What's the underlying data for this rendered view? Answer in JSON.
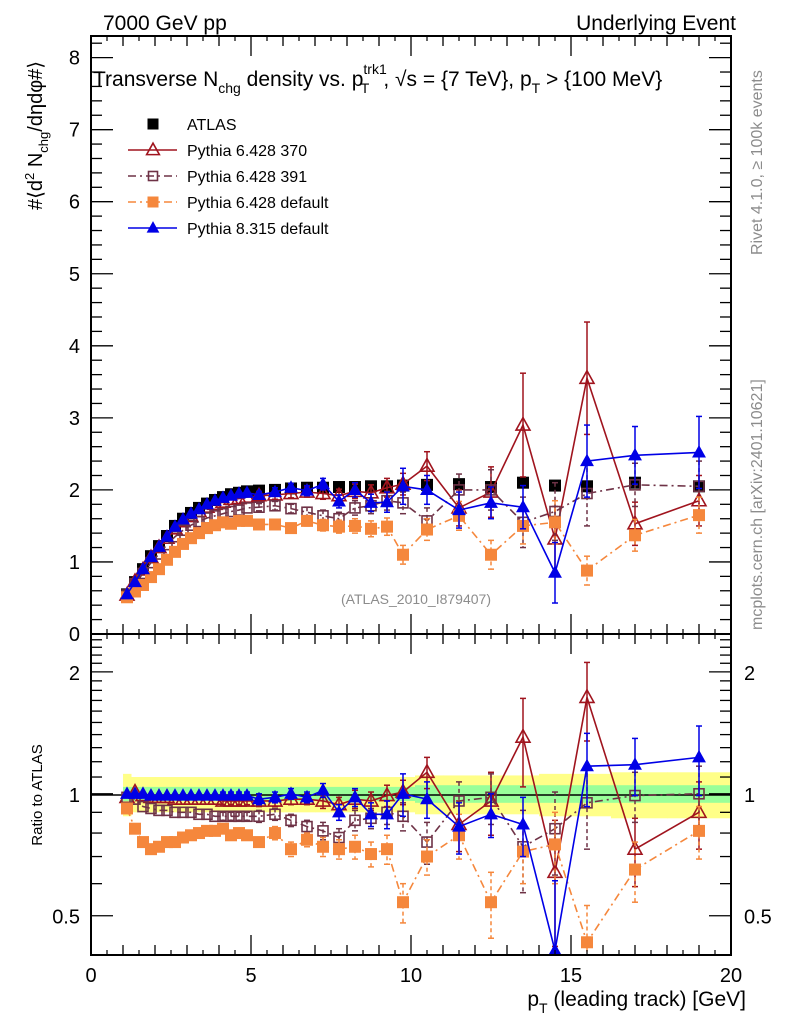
{
  "header": {
    "left": "7000 GeV pp",
    "right": "Underlying Event"
  },
  "side_labels": {
    "rivet": "Rivet 4.1.0, ≥ 100k events",
    "mcplots": "mcplots.cern.ch [arXiv:2401.10621]"
  },
  "analysis_tag": "(ATLAS_2010_I879407)",
  "chart_data": [
    {
      "type": "scatter",
      "panel": "main",
      "title": "Transverse N_chg density vs. p_T^trk1, √s = {7 TeV}, p_T > {100 MeV}",
      "title_parts": {
        "a": "Transverse N",
        "a_sub": "chg",
        "b": " density vs. p",
        "b_sup": "trk1",
        "b_sub": "T",
        "c": ", √s = {7 TeV}, p",
        "c_sub": "T",
        "d": " > {100 MeV}"
      },
      "ylabel": "#⟨d² N_chg/dηdφ#⟩",
      "ylabel_parts": {
        "a": "#⟨d",
        "sup": "2",
        "b": " N",
        "sub": "chg",
        "c": "/dηdφ#⟩"
      },
      "xlim": [
        0,
        20
      ],
      "ylim": [
        0,
        8.3
      ],
      "yticks": [
        0,
        1,
        2,
        3,
        4,
        5,
        6,
        7,
        8
      ],
      "legend_position": "top-left",
      "x": [
        1.125,
        1.375,
        1.625,
        1.875,
        2.125,
        2.375,
        2.625,
        2.875,
        3.125,
        3.375,
        3.625,
        3.875,
        4.125,
        4.375,
        4.625,
        4.875,
        5.25,
        5.75,
        6.25,
        6.75,
        7.25,
        7.75,
        8.25,
        8.75,
        9.25,
        9.75,
        10.5,
        11.5,
        12.5,
        13.5,
        14.5,
        15.5,
        17,
        19
      ],
      "series": [
        {
          "name": "ATLAS",
          "color": "#000000",
          "marker": "filled-square",
          "line": "none",
          "values": [
            0.55,
            0.72,
            0.9,
            1.08,
            1.22,
            1.36,
            1.5,
            1.6,
            1.68,
            1.75,
            1.81,
            1.86,
            1.9,
            1.94,
            1.96,
            1.98,
            1.99,
            2.0,
            2.02,
            2.03,
            2.03,
            2.04,
            2.04,
            2.05,
            2.05,
            2.06,
            2.07,
            2.08,
            2.04,
            2.1,
            2.06,
            2.05,
            2.1,
            2.05
          ],
          "errors": [
            0.01,
            0.01,
            0.01,
            0.01,
            0.01,
            0.01,
            0.01,
            0.01,
            0.01,
            0.01,
            0.01,
            0.01,
            0.01,
            0.01,
            0.01,
            0.01,
            0.01,
            0.01,
            0.01,
            0.01,
            0.01,
            0.01,
            0.01,
            0.01,
            0.01,
            0.01,
            0.01,
            0.01,
            0.01,
            0.01,
            0.01,
            0.01,
            0.01,
            0.01
          ]
        },
        {
          "name": "Pythia 6.428 370",
          "color": "#a0141e",
          "marker": "open-triangle",
          "line": "solid",
          "values": [
            0.54,
            0.73,
            0.89,
            1.06,
            1.2,
            1.33,
            1.46,
            1.56,
            1.63,
            1.7,
            1.76,
            1.8,
            1.83,
            1.87,
            1.88,
            1.9,
            1.92,
            1.93,
            1.95,
            1.97,
            1.95,
            1.92,
            1.98,
            1.96,
            2.03,
            2.08,
            2.33,
            1.75,
            1.97,
            2.9,
            1.32,
            3.55,
            1.53,
            1.85
          ],
          "errors": [
            0.01,
            0.01,
            0.01,
            0.01,
            0.01,
            0.01,
            0.01,
            0.01,
            0.02,
            0.02,
            0.02,
            0.02,
            0.03,
            0.03,
            0.03,
            0.03,
            0.05,
            0.06,
            0.06,
            0.07,
            0.08,
            0.09,
            0.1,
            0.11,
            0.13,
            0.15,
            0.2,
            0.25,
            0.35,
            0.72,
            0.45,
            0.78,
            0.3,
            0.35
          ]
        },
        {
          "name": "Pythia 6.428 391",
          "color": "#6e3246",
          "marker": "open-square",
          "line": "dash-dot",
          "values": [
            0.54,
            0.7,
            0.84,
            0.99,
            1.11,
            1.24,
            1.35,
            1.44,
            1.51,
            1.56,
            1.61,
            1.64,
            1.67,
            1.7,
            1.72,
            1.75,
            1.76,
            1.78,
            1.74,
            1.69,
            1.64,
            1.6,
            1.75,
            1.78,
            1.85,
            1.82,
            1.57,
            2.0,
            2.0,
            1.55,
            1.7,
            1.95,
            2.07,
            2.05
          ],
          "errors": [
            0.01,
            0.01,
            0.01,
            0.01,
            0.01,
            0.01,
            0.01,
            0.01,
            0.02,
            0.02,
            0.02,
            0.02,
            0.03,
            0.03,
            0.03,
            0.03,
            0.05,
            0.06,
            0.06,
            0.07,
            0.08,
            0.09,
            0.1,
            0.11,
            0.13,
            0.15,
            0.18,
            0.22,
            0.28,
            0.35,
            0.4,
            0.45,
            0.3,
            0.35
          ]
        },
        {
          "name": "Pythia 6.428 default",
          "color": "#f5873c",
          "marker": "filled-square",
          "line": "dash-dot",
          "values": [
            0.51,
            0.59,
            0.68,
            0.79,
            0.9,
            1.03,
            1.14,
            1.25,
            1.33,
            1.4,
            1.47,
            1.51,
            1.55,
            1.53,
            1.57,
            1.57,
            1.52,
            1.52,
            1.47,
            1.57,
            1.51,
            1.49,
            1.5,
            1.46,
            1.49,
            1.1,
            1.45,
            1.64,
            1.1,
            1.5,
            1.55,
            0.88,
            1.37,
            1.65
          ],
          "errors": [
            0.01,
            0.01,
            0.01,
            0.01,
            0.01,
            0.01,
            0.01,
            0.01,
            0.02,
            0.02,
            0.02,
            0.02,
            0.03,
            0.03,
            0.03,
            0.03,
            0.04,
            0.05,
            0.06,
            0.07,
            0.08,
            0.09,
            0.1,
            0.11,
            0.12,
            0.13,
            0.15,
            0.2,
            0.2,
            0.25,
            0.3,
            0.2,
            0.22,
            0.25
          ]
        },
        {
          "name": "Pythia 8.315 default",
          "color": "#0000e6",
          "marker": "filled-triangle",
          "line": "solid",
          "values": [
            0.55,
            0.72,
            0.9,
            1.07,
            1.21,
            1.35,
            1.49,
            1.59,
            1.67,
            1.73,
            1.8,
            1.85,
            1.89,
            1.92,
            1.95,
            1.96,
            1.93,
            1.97,
            2.03,
            1.99,
            2.08,
            1.84,
            2.0,
            1.82,
            1.83,
            2.05,
            2.0,
            1.72,
            1.82,
            1.76,
            0.85,
            2.4,
            2.48,
            2.52
          ],
          "errors": [
            0.01,
            0.01,
            0.01,
            0.01,
            0.01,
            0.01,
            0.01,
            0.01,
            0.02,
            0.02,
            0.02,
            0.02,
            0.03,
            0.03,
            0.03,
            0.03,
            0.05,
            0.06,
            0.06,
            0.07,
            0.08,
            0.09,
            0.1,
            0.12,
            0.14,
            0.25,
            0.2,
            0.25,
            0.22,
            0.3,
            0.42,
            0.5,
            0.4,
            0.5
          ]
        }
      ]
    },
    {
      "type": "scatter",
      "panel": "ratio",
      "ylabel": "Ratio to ATLAS",
      "xlabel": "p_T (leading track) [GeV]",
      "xlabel_parts": {
        "a": "p",
        "sub": "T",
        "b": " (leading track) [GeV]"
      },
      "xlim": [
        0,
        20
      ],
      "xticks": [
        0,
        5,
        10,
        15,
        20
      ],
      "ylim": [
        0.4,
        2.48
      ],
      "yscale": "log",
      "yticks": [
        0.5,
        1,
        2
      ],
      "ytick_labels": [
        "0.5",
        "1",
        "2"
      ],
      "band_1sigma_color": "#99ff99",
      "band_2sigma_color": "#ffff88",
      "band_1sigma": [
        0.04,
        0.04,
        0.04,
        0.04,
        0.04,
        0.04,
        0.04,
        0.04,
        0.04,
        0.04,
        0.04,
        0.04,
        0.04,
        0.04,
        0.04,
        0.04,
        0.04,
        0.04,
        0.04,
        0.04,
        0.04,
        0.04,
        0.04,
        0.04,
        0.04,
        0.04,
        0.05,
        0.05,
        0.05,
        0.05,
        0.05,
        0.05,
        0.05,
        0.05
      ],
      "band_2sigma": [
        0.12,
        0.1,
        0.1,
        0.1,
        0.1,
        0.1,
        0.1,
        0.1,
        0.1,
        0.1,
        0.1,
        0.1,
        0.1,
        0.1,
        0.1,
        0.1,
        0.1,
        0.1,
        0.1,
        0.1,
        0.1,
        0.1,
        0.1,
        0.1,
        0.1,
        0.1,
        0.11,
        0.11,
        0.11,
        0.11,
        0.12,
        0.12,
        0.13,
        0.13
      ],
      "series": [
        {
          "name": "Pythia 6.428 370",
          "color": "#a0141e",
          "marker": "open-triangle",
          "line": "solid",
          "values": [
            0.98,
            1.01,
            0.99,
            0.98,
            0.98,
            0.98,
            0.97,
            0.97,
            0.97,
            0.97,
            0.97,
            0.97,
            0.96,
            0.96,
            0.96,
            0.96,
            0.96,
            0.96,
            0.97,
            0.97,
            0.96,
            0.94,
            0.97,
            0.96,
            0.99,
            1.01,
            1.13,
            0.84,
            0.96,
            1.38,
            0.64,
            1.73,
            0.73,
            0.9
          ],
          "errors": [
            0.01,
            0.01,
            0.01,
            0.01,
            0.01,
            0.01,
            0.01,
            0.01,
            0.01,
            0.01,
            0.01,
            0.01,
            0.02,
            0.02,
            0.02,
            0.02,
            0.03,
            0.03,
            0.03,
            0.03,
            0.04,
            0.04,
            0.05,
            0.05,
            0.06,
            0.07,
            0.1,
            0.12,
            0.17,
            0.34,
            0.22,
            0.38,
            0.14,
            0.17
          ]
        },
        {
          "name": "Pythia 6.428 391",
          "color": "#6e3246",
          "marker": "open-square",
          "line": "dash-dot",
          "values": [
            0.98,
            0.97,
            0.93,
            0.92,
            0.91,
            0.91,
            0.9,
            0.9,
            0.9,
            0.89,
            0.89,
            0.88,
            0.88,
            0.88,
            0.88,
            0.88,
            0.88,
            0.89,
            0.86,
            0.83,
            0.81,
            0.78,
            0.86,
            0.87,
            0.9,
            0.88,
            0.76,
            0.96,
            0.98,
            0.74,
            0.82,
            0.95,
            0.99,
            1.0
          ],
          "errors": [
            0.01,
            0.01,
            0.01,
            0.01,
            0.01,
            0.01,
            0.01,
            0.01,
            0.01,
            0.01,
            0.01,
            0.01,
            0.02,
            0.02,
            0.02,
            0.02,
            0.03,
            0.03,
            0.03,
            0.03,
            0.04,
            0.04,
            0.05,
            0.05,
            0.06,
            0.07,
            0.09,
            0.11,
            0.14,
            0.17,
            0.19,
            0.22,
            0.14,
            0.17
          ]
        },
        {
          "name": "Pythia 6.428 default",
          "color": "#f5873c",
          "marker": "filled-square",
          "line": "dash-dot",
          "values": [
            0.92,
            0.82,
            0.76,
            0.73,
            0.74,
            0.76,
            0.76,
            0.78,
            0.79,
            0.8,
            0.81,
            0.81,
            0.82,
            0.79,
            0.8,
            0.79,
            0.76,
            0.8,
            0.73,
            0.77,
            0.74,
            0.73,
            0.74,
            0.71,
            0.73,
            0.54,
            0.7,
            0.79,
            0.54,
            0.72,
            0.75,
            0.43,
            0.65,
            0.81
          ],
          "errors": [
            0.01,
            0.01,
            0.01,
            0.01,
            0.01,
            0.01,
            0.01,
            0.01,
            0.01,
            0.01,
            0.01,
            0.01,
            0.02,
            0.02,
            0.02,
            0.02,
            0.02,
            0.03,
            0.03,
            0.03,
            0.04,
            0.04,
            0.05,
            0.05,
            0.06,
            0.06,
            0.07,
            0.1,
            0.1,
            0.12,
            0.15,
            0.1,
            0.11,
            0.12
          ]
        },
        {
          "name": "Pythia 8.315 default",
          "color": "#0000e6",
          "marker": "filled-triangle",
          "line": "solid",
          "values": [
            1.0,
            1.0,
            1.0,
            0.99,
            0.99,
            0.99,
            0.99,
            0.99,
            0.99,
            0.99,
            0.99,
            0.99,
            0.99,
            0.99,
            0.99,
            0.99,
            0.97,
            0.98,
            1.0,
            0.98,
            1.02,
            0.9,
            0.98,
            0.89,
            0.89,
            1.0,
            0.97,
            0.83,
            0.89,
            0.84,
            0.41,
            1.17,
            1.18,
            1.23
          ],
          "errors": [
            0.01,
            0.01,
            0.01,
            0.01,
            0.01,
            0.01,
            0.01,
            0.01,
            0.01,
            0.01,
            0.01,
            0.01,
            0.02,
            0.02,
            0.02,
            0.02,
            0.03,
            0.03,
            0.03,
            0.03,
            0.04,
            0.04,
            0.05,
            0.06,
            0.07,
            0.12,
            0.1,
            0.12,
            0.11,
            0.14,
            0.2,
            0.24,
            0.19,
            0.24
          ]
        }
      ]
    }
  ]
}
